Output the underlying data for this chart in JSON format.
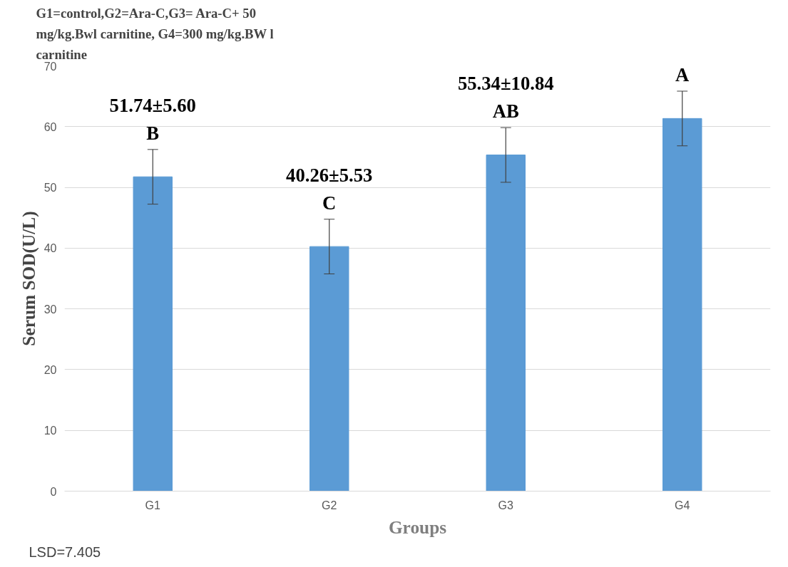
{
  "chart_data": {
    "type": "bar",
    "title": "G1=control,G2=Ara-C,G3= Ara-C+ 50 mg/kg.Bwl carnitine, G4=300 mg/kg.BW l carnitine",
    "xlabel": "Groups",
    "ylabel": "Serum SOD(U/L)",
    "categories": [
      "G1",
      "G2",
      "G3",
      "G4"
    ],
    "values": [
      51.74,
      40.26,
      55.34,
      61.34
    ],
    "errors": [
      4.5,
      4.5,
      4.5,
      4.5
    ],
    "value_labels": [
      "51.74±5.60\nB",
      "40.26±5.53\nC",
      "55.34±10.84\nAB",
      "61.34±6.76\nA"
    ],
    "color": "#5b9bd5",
    "ylim": [
      0,
      70
    ],
    "yticks": [
      0,
      10,
      20,
      30,
      40,
      50,
      60,
      70
    ],
    "grid": "y",
    "annotations": [
      "LSD=7.405"
    ]
  }
}
